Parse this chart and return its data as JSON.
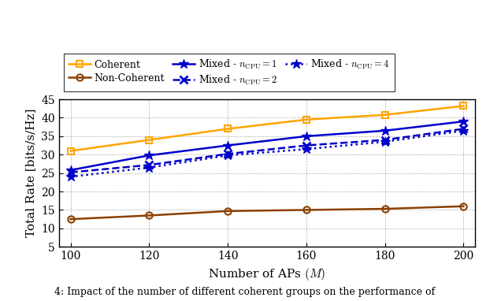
{
  "x": [
    100,
    120,
    140,
    160,
    180,
    200
  ],
  "coherent": [
    31.0,
    34.0,
    37.0,
    39.5,
    40.8,
    43.2
  ],
  "non_coherent": [
    12.5,
    13.5,
    14.7,
    15.0,
    15.3,
    16.0
  ],
  "mixed_ncpu1": [
    25.8,
    29.8,
    32.5,
    35.0,
    36.5,
    39.0
  ],
  "mixed_ncpu2": [
    25.2,
    27.2,
    30.2,
    32.5,
    34.0,
    37.0
  ],
  "mixed_ncpu4": [
    24.0,
    26.5,
    29.8,
    31.5,
    33.5,
    36.5
  ],
  "color_coherent": "#FFA500",
  "color_non_coherent": "#8B4000",
  "color_mixed": "#0000CC",
  "ylim": [
    5,
    45
  ],
  "xlim": [
    97,
    203
  ],
  "xlabel": "Number of APs $(M)$",
  "ylabel": "Total Rate [bits/s/Hz]",
  "xticks": [
    100,
    120,
    140,
    160,
    180,
    200
  ],
  "yticks": [
    5,
    10,
    15,
    20,
    25,
    30,
    35,
    40,
    45
  ],
  "caption": "4: Impact of the number of different coherent groups on the performance of"
}
